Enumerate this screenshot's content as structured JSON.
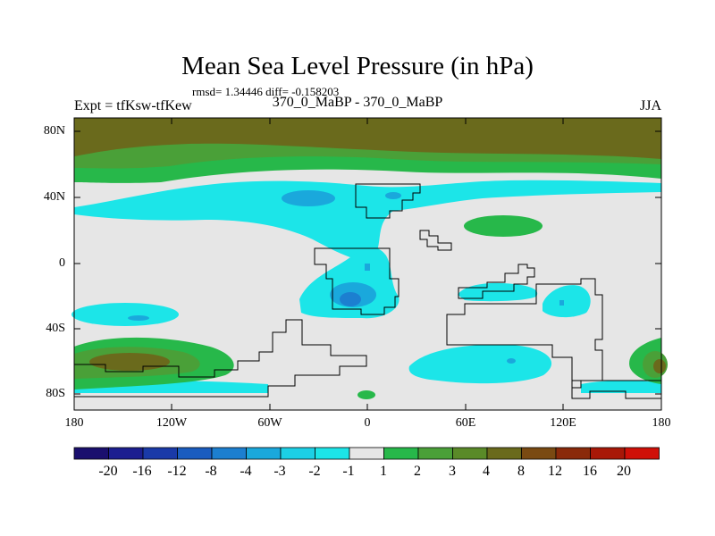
{
  "title": "Mean Sea Level Pressure (in hPa)",
  "stats": "rmsd= 1.34446 diff= -0.158203",
  "left_label": "Expt = tfKsw-tfKew",
  "center_label": "370_0_MaBP - 370_0_MaBP",
  "right_label": "JJA",
  "lat_ticks": [
    "80N",
    "40N",
    "0",
    "40S",
    "80S"
  ],
  "lon_ticks": [
    "180",
    "120W",
    "60W",
    "0",
    "60E",
    "120E",
    "180"
  ],
  "colorbar": {
    "labels": [
      "-20",
      "-16",
      "-12",
      "-8",
      "-4",
      "-3",
      "-2",
      "-1",
      "1",
      "2",
      "3",
      "4",
      "8",
      "12",
      "16",
      "20"
    ],
    "colors": [
      "#1a0f6e",
      "#1c1e90",
      "#1a3aa8",
      "#1a5cbf",
      "#1c7fd0",
      "#1aa8dc",
      "#1cd0e6",
      "#1ce5e8",
      "#e6e6e6",
      "#27b84a",
      "#4aa038",
      "#5a8a28",
      "#6a6a1c",
      "#7a4a12",
      "#8a2a0a",
      "#a81808",
      "#d01008"
    ]
  }
}
